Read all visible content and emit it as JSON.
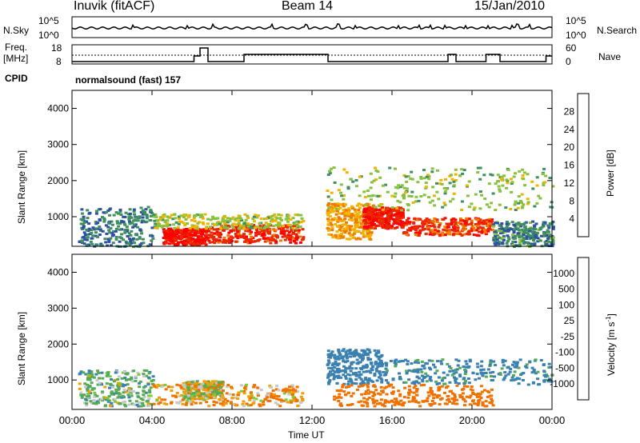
{
  "header": {
    "station": "Inuvik (fitACF)",
    "beam": "Beam 14",
    "date": "15/Jan/2010"
  },
  "side_labels": {
    "nsky": "N.Sky",
    "nsearch": "N.Search",
    "freq_line1": "Freq.",
    "freq_line2": "[MHz]",
    "nave": "Nave",
    "cpid": "CPID",
    "cpid_value": "normalsound (fast) 157"
  },
  "top_axes": {
    "noise_left": [
      "10^5",
      "10^0"
    ],
    "noise_right": [
      "10^5",
      "10^0"
    ],
    "freq_left": [
      "18",
      "8"
    ],
    "freq_right": [
      "60",
      "0"
    ]
  },
  "x_axis": {
    "label": "Time UT",
    "ticks": [
      "00:00",
      "04:00",
      "08:00",
      "12:00",
      "16:00",
      "20:00",
      "00:00"
    ]
  },
  "chart_data": [
    {
      "type": "heatmap",
      "title": "Power",
      "ylabel": "Slant Range [km]",
      "xlabel": "",
      "x_ticks": [
        "00:00",
        "04:00",
        "08:00",
        "12:00",
        "16:00",
        "20:00",
        "00:00"
      ],
      "x_range_hours": [
        0,
        24
      ],
      "y_ticks": [
        1000,
        2000,
        3000,
        4000
      ],
      "ylim": [
        180,
        4500
      ],
      "colorbar": {
        "label": "Power [dB]",
        "ticks": [
          4,
          8,
          12,
          16,
          20,
          24,
          28
        ],
        "colors": [
          "#0000ff",
          "#2e4fa3",
          "#3f8f5f",
          "#86c23e",
          "#f2b300",
          "#f07a00",
          "#e92a00",
          "#ff0000"
        ]
      },
      "regions": [
        {
          "t0": 0.3,
          "t1": 4.0,
          "r0": 200,
          "r1": 1300,
          "level": 6
        },
        {
          "t0": 4.5,
          "t1": 6.8,
          "r0": 250,
          "r1": 700,
          "level": 27
        },
        {
          "t0": 6.8,
          "t1": 11.5,
          "r0": 300,
          "r1": 800,
          "level": 25
        },
        {
          "t0": 4.0,
          "t1": 11.5,
          "r0": 700,
          "r1": 1100,
          "level": 13
        },
        {
          "t0": 12.7,
          "t1": 15.0,
          "r0": 400,
          "r1": 1400,
          "level": 18
        },
        {
          "t0": 14.5,
          "t1": 16.5,
          "r0": 700,
          "r1": 1300,
          "level": 26
        },
        {
          "t0": 16.5,
          "t1": 21.0,
          "r0": 500,
          "r1": 1000,
          "level": 24
        },
        {
          "t0": 12.7,
          "t1": 24.0,
          "r0": 1200,
          "r1": 2400,
          "level": 12
        },
        {
          "t0": 21.0,
          "t1": 24.0,
          "r0": 200,
          "r1": 900,
          "level": 7
        }
      ]
    },
    {
      "type": "heatmap",
      "title": "Velocity",
      "ylabel": "Slant Range [km]",
      "xlabel": "Time UT",
      "x_ticks": [
        "00:00",
        "04:00",
        "08:00",
        "12:00",
        "16:00",
        "20:00",
        "00:00"
      ],
      "x_range_hours": [
        0,
        24
      ],
      "y_ticks": [
        1000,
        2000,
        3000,
        4000
      ],
      "ylim": [
        180,
        4500
      ],
      "colorbar": {
        "label": "Velocity [m s^-1]",
        "ticks": [
          1000,
          500,
          100,
          25,
          -25,
          -100,
          -500,
          -1000
        ],
        "colors": [
          "#2244aa",
          "#3a80b0",
          "#55aa55",
          "#7ccc3a",
          "#c8c8c8",
          "#f0a000",
          "#f07000",
          "#e83000",
          "#ff0000"
        ]
      },
      "regions": [
        {
          "t0": 0.3,
          "t1": 4.0,
          "r0": 300,
          "r1": 1300,
          "level": 100
        },
        {
          "t0": 4.0,
          "t1": 11.5,
          "r0": 300,
          "r1": 900,
          "level": -100
        },
        {
          "t0": 5.5,
          "t1": 7.5,
          "r0": 500,
          "r1": 1000,
          "level": 0
        },
        {
          "t0": 12.7,
          "t1": 15.5,
          "r0": 900,
          "r1": 1900,
          "level": 500
        },
        {
          "t0": 13.0,
          "t1": 21.0,
          "r0": 300,
          "r1": 900,
          "level": -300
        },
        {
          "t0": 15.5,
          "t1": 24.0,
          "r0": 900,
          "r1": 1600,
          "level": 300
        }
      ]
    }
  ]
}
